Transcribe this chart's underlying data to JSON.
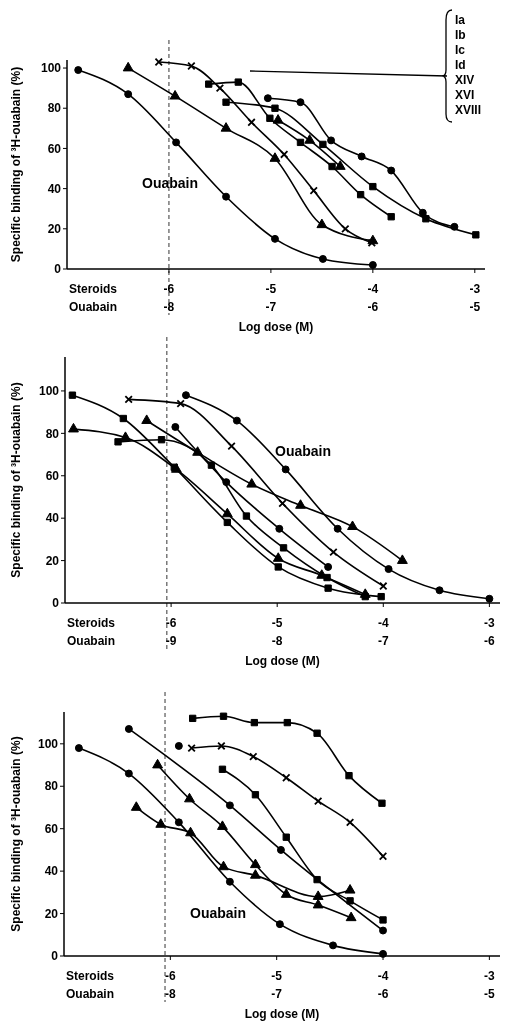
{
  "chart_data": [
    {
      "type": "line",
      "ylabel": "Specific binding of ³H-ouabain (%)",
      "xlabel": "Log dose (M)",
      "annotations": [
        "Steroids",
        "Ouabain",
        "Ia",
        "Ib",
        "Ic",
        "Id",
        "XIV",
        "XVI",
        "XVIII"
      ],
      "xlim": [
        -7,
        -2.9
      ],
      "ylim": [
        0,
        104
      ],
      "xticks": [
        -6,
        -5,
        -4,
        -3
      ],
      "x2lim": [
        -9,
        -4.9
      ],
      "x2ticks": [
        -8,
        -7,
        -6,
        -5
      ],
      "yticks": [
        0,
        20,
        40,
        60,
        80,
        100
      ],
      "ref_lines": [
        {
          "axis": "x",
          "value": -6,
          "line_style": "dashed",
          "color": "#000000"
        }
      ],
      "series": [
        {
          "name": "Ouabain",
          "type": "line",
          "axis": "x2",
          "marker": "circle",
          "color": "#000000",
          "x": [
            -8.89,
            -8.4,
            -7.93,
            -7.44,
            -6.96,
            -6.49,
            -6.0
          ],
          "values": [
            99,
            87,
            63,
            36,
            15,
            5,
            2
          ]
        },
        {
          "type": "line",
          "marker": "triangle",
          "color": "#000000",
          "x": [
            -6.4,
            -5.94,
            -5.44,
            -4.96,
            -4.5,
            -4.0
          ],
          "values": [
            100,
            86,
            70,
            55,
            22,
            14
          ]
        },
        {
          "type": "line",
          "marker": "cross",
          "color": "#000000",
          "x": [
            -6.1,
            -5.78,
            -5.5,
            -5.19,
            -4.87,
            -4.58,
            -4.27,
            -4.01
          ],
          "values": [
            103,
            101,
            90,
            73,
            57,
            39,
            20,
            13
          ]
        },
        {
          "type": "line",
          "marker": "square",
          "color": "#000000",
          "x": [
            -5.61,
            -5.32,
            -5.01,
            -4.71,
            -4.4,
            -4.12,
            -3.82
          ],
          "values": [
            92,
            93,
            75,
            63,
            51,
            37,
            26
          ]
        },
        {
          "type": "line",
          "marker": "triangle",
          "color": "#000000",
          "x": [
            -4.93,
            -4.62,
            -4.32
          ],
          "values": [
            74,
            64,
            51
          ]
        },
        {
          "type": "line",
          "marker": "square",
          "color": "#000000",
          "x": [
            -5.44,
            -4.96,
            -4.49,
            -4.0,
            -3.48,
            -2.99
          ],
          "values": [
            83,
            80,
            62,
            41,
            25,
            17
          ]
        },
        {
          "type": "line",
          "marker": "circle",
          "color": "#000000",
          "x": [
            -5.03,
            -4.71,
            -4.41,
            -4.11,
            -3.82,
            -3.51,
            -3.2
          ],
          "values": [
            85,
            83,
            64,
            56,
            49,
            28,
            21
          ]
        }
      ]
    },
    {
      "type": "line",
      "ylabel": "Specific binding of ³H-ouabain (%)",
      "xlabel": "Log dose (M)",
      "annotations": [
        "Steroids",
        "Ouabain"
      ],
      "xlim": [
        -7,
        -2.9
      ],
      "ylim": [
        0,
        116
      ],
      "xticks": [
        -6,
        -5,
        -4,
        -3
      ],
      "x2lim": [
        -10,
        -5.9
      ],
      "x2ticks": [
        -9,
        -8,
        -7,
        -6
      ],
      "yticks": [
        0,
        20,
        40,
        60,
        80,
        100
      ],
      "ref_lines": [
        {
          "axis": "x",
          "value": -6.04,
          "line_style": "dashed",
          "color": "#000000"
        }
      ],
      "series": [
        {
          "name": "Ouabain",
          "type": "line",
          "axis": "x2",
          "marker": "circle",
          "color": "#000000",
          "x": [
            -8.86,
            -8.38,
            -7.92,
            -7.43,
            -6.95,
            -6.47,
            -6.0
          ],
          "values": [
            98,
            86,
            63,
            35,
            16,
            6,
            2
          ]
        },
        {
          "type": "line",
          "marker": "cross",
          "color": "#000000",
          "x": [
            -6.4,
            -5.91,
            -5.43,
            -4.95,
            -4.47,
            -4.0
          ],
          "values": [
            96,
            94,
            74,
            47,
            24,
            8
          ]
        },
        {
          "type": "line",
          "marker": "triangle",
          "color": "#000000",
          "x": [
            -6.23,
            -5.75,
            -5.24,
            -4.78,
            -4.29,
            -3.82
          ],
          "values": [
            86,
            71,
            56,
            46,
            36,
            20
          ]
        },
        {
          "type": "line",
          "marker": "circle",
          "color": "#000000",
          "x": [
            -5.96,
            -5.48,
            -4.98,
            -4.52
          ],
          "values": [
            83,
            57,
            35,
            17
          ]
        },
        {
          "type": "line",
          "marker": "square",
          "color": "#000000",
          "x": [
            -6.5,
            -6.09,
            -5.62,
            -5.29,
            -4.94,
            -4.53,
            -4.17
          ],
          "values": [
            76,
            77,
            65,
            41,
            26,
            12,
            3
          ]
        },
        {
          "type": "line",
          "marker": "triangle",
          "color": "#000000",
          "x": [
            -6.92,
            -6.43,
            -5.95,
            -5.47,
            -4.99,
            -4.58,
            -4.17
          ],
          "values": [
            82,
            78,
            63,
            42,
            21,
            13,
            4
          ]
        },
        {
          "type": "line",
          "marker": "square",
          "color": "#000000",
          "x": [
            -6.93,
            -6.45,
            -5.97,
            -5.47,
            -4.99,
            -4.52,
            -4.02
          ],
          "values": [
            98,
            87,
            64,
            38,
            17,
            7,
            3
          ]
        }
      ]
    },
    {
      "type": "line",
      "ylabel": "Specific binding of ³H-ouabain (%)",
      "xlabel": "Log dose (M)",
      "annotations": [
        "Steroids",
        "Ouabain"
      ],
      "xlim": [
        -7,
        -2.9
      ],
      "ylim": [
        0,
        115
      ],
      "xticks": [
        -6,
        -5,
        -4,
        -3
      ],
      "x2lim": [
        -9,
        -4.9
      ],
      "x2ticks": [
        -8,
        -7,
        -6,
        -5
      ],
      "yticks": [
        0,
        20,
        40,
        60,
        80,
        100
      ],
      "ref_lines": [
        {
          "axis": "x",
          "value": -6.05,
          "line_style": "dashed",
          "color": "#000000"
        }
      ],
      "series": [
        {
          "name": "Ouabain",
          "type": "line",
          "axis": "x2",
          "marker": "circle",
          "color": "#000000",
          "x": [
            -8.86,
            -8.39,
            -7.92,
            -7.44,
            -6.97,
            -6.47,
            -6.0
          ],
          "values": [
            98,
            86,
            63,
            35,
            15,
            5,
            1
          ]
        },
        {
          "type": "line",
          "marker": "square",
          "color": "#000000",
          "x": [
            -5.79,
            -5.5,
            -5.21,
            -4.9,
            -4.62,
            -4.32,
            -4.01
          ],
          "values": [
            112,
            113,
            110,
            110,
            105,
            85,
            72
          ]
        },
        {
          "type": "line",
          "marker": "cross",
          "color": "#000000",
          "x": [
            -5.8,
            -5.52,
            -5.22,
            -4.91,
            -4.61,
            -4.31,
            -4.0
          ],
          "values": [
            98,
            99,
            94,
            84,
            73,
            63,
            47
          ]
        },
        {
          "type": "scatter",
          "marker": "circle",
          "color": "#000000",
          "x": [
            -5.92
          ],
          "values": [
            99
          ]
        },
        {
          "type": "line",
          "marker": "circle",
          "color": "#000000",
          "x": [
            -6.39,
            -5.44,
            -4.96,
            -4.0
          ],
          "values": [
            107,
            71,
            50,
            12
          ]
        },
        {
          "type": "line",
          "marker": "square",
          "color": "#000000",
          "x": [
            -5.51,
            -5.2,
            -4.91,
            -4.62,
            -4.31,
            -4.0
          ],
          "values": [
            88,
            76,
            56,
            36,
            26,
            17
          ]
        },
        {
          "type": "line",
          "marker": "triangle",
          "color": "#000000",
          "x": [
            -6.12,
            -5.82,
            -5.51,
            -5.2,
            -4.91,
            -4.61,
            -4.3
          ],
          "values": [
            90,
            74,
            61,
            43,
            29,
            24,
            18
          ]
        },
        {
          "type": "line",
          "marker": "triangle",
          "color": "#000000",
          "x": [
            -6.32,
            -6.09,
            -5.81,
            -5.5,
            -5.2,
            -4.61,
            -4.31
          ],
          "values": [
            70,
            62,
            58,
            42,
            38,
            28,
            31
          ]
        }
      ]
    }
  ]
}
